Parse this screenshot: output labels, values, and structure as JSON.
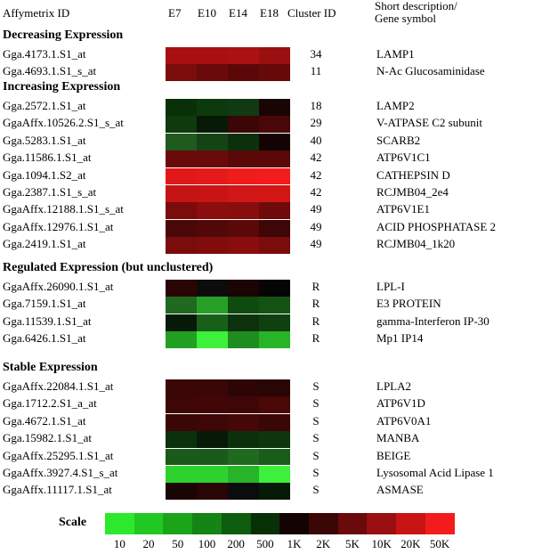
{
  "header": {
    "probe": "Affymetrix ID",
    "stages": [
      "E7",
      "E10",
      "E14",
      "E18"
    ],
    "cluster": "Cluster ID",
    "desc_line1": "Short description/",
    "desc_line2": "Gene symbol"
  },
  "chart_data": {
    "type": "heatmap",
    "columns": [
      "E7",
      "E10",
      "E14",
      "E18"
    ],
    "sections": [
      {
        "title": "Decreasing Expression",
        "rows": [
          {
            "probe": "Gga.4173.1.S1_at",
            "cluster": "34",
            "gene": "LAMP1",
            "colors": [
              "#a81010",
              "#a81010",
              "#aa1212",
              "#9a1010"
            ]
          },
          {
            "probe": "Gga.4693.1.S1_s_at",
            "cluster": "11",
            "gene": "N-Ac Glucosaminidase",
            "colors": [
              "#7a0c0c",
              "#6a0a0a",
              "#5c0808",
              "#660909"
            ]
          }
        ]
      },
      {
        "title": "Increasing Expression",
        "rows": [
          {
            "probe": "Gga.2572.1.S1_at",
            "cluster": "18",
            "gene": "LAMP2",
            "colors": [
              "#0a300a",
              "#0c3a0c",
              "#123a12",
              "#1a0505"
            ]
          },
          {
            "probe": "GgaAffx.10526.2.S1_s_at",
            "cluster": "29",
            "gene": "V-ATPASE C2 subunit",
            "colors": [
              "#0e3a0e",
              "#071a07",
              "#3a0606",
              "#4a0707"
            ]
          },
          {
            "probe": "Gga.5283.1.S1_at",
            "cluster": "40",
            "gene": "SCARB2",
            "colors": [
              "#1f5a1f",
              "#144414",
              "#0c300c",
              "#140303"
            ]
          },
          {
            "probe": "Gga.11586.1.S1_at",
            "cluster": "42",
            "gene": "ATP6V1C1",
            "colors": [
              "#6a0a0a",
              "#6a0a0a",
              "#5a0808",
              "#5a0808"
            ]
          },
          {
            "probe": "Gga.1094.1.S2_at",
            "cluster": "42",
            "gene": "CATHEPSIN D",
            "colors": [
              "#e01818",
              "#e61a1a",
              "#f01c1c",
              "#f21c1c"
            ]
          },
          {
            "probe": "Gga.2387.1.S1_s_at",
            "cluster": "42",
            "gene": "RCJMB04_2e4",
            "colors": [
              "#c41414",
              "#c81414",
              "#d01616",
              "#d21616"
            ]
          },
          {
            "probe": "GgaAffx.12188.1.S1_s_at",
            "cluster": "49",
            "gene": "ATP6V1E1",
            "colors": [
              "#7a0c0c",
              "#8c0d0d",
              "#8a0d0d",
              "#6e0a0a"
            ]
          },
          {
            "probe": "GgaAffx.12976.1.S1_at",
            "cluster": "49",
            "gene": "ACID PHOSPHATASE 2",
            "colors": [
              "#4a0707",
              "#520808",
              "#5a0808",
              "#3e0606"
            ]
          },
          {
            "probe": "Gga.2419.1.S1_at",
            "cluster": "49",
            "gene": "RCJMB04_1k20",
            "colors": [
              "#7a0c0c",
              "#800c0c",
              "#8a0d0d",
              "#7a0c0c"
            ]
          }
        ]
      },
      {
        "title": "Regulated Expression (but unclustered)",
        "rows": [
          {
            "probe": "GgaAffx.26090.1.S1_at",
            "cluster": "R",
            "gene": "LPL-I",
            "colors": [
              "#2a0505",
              "#0c0c0c",
              "#1a0404",
              "#050505"
            ]
          },
          {
            "probe": "Gga.7159.1.S1_at",
            "cluster": "R",
            "gene": "E3 PROTEIN",
            "colors": [
              "#1f6a1f",
              "#28a028",
              "#0f4a0f",
              "#145214"
            ]
          },
          {
            "probe": "Gga.11539.1.S1_at",
            "cluster": "R",
            "gene": "gamma-Interferon IP-30",
            "colors": [
              "#071a07",
              "#186018",
              "#0c320c",
              "#104010"
            ]
          },
          {
            "probe": "Gga.6426.1.S1_at",
            "cluster": "R",
            "gene": "Mp1 IP14",
            "colors": [
              "#22a022",
              "#3cf03c",
              "#1e8c1e",
              "#28b428"
            ]
          }
        ]
      },
      {
        "title": "Stable Expression",
        "rows": [
          {
            "probe": "GgaAffx.22084.1.S1_at",
            "cluster": "S",
            "gene": "LPLA2",
            "colors": [
              "#3a0606",
              "#3a0606",
              "#2e0505",
              "#2a0505"
            ]
          },
          {
            "probe": "Gga.1712.2.S1_a_at",
            "cluster": "S",
            "gene": "ATP6V1D",
            "colors": [
              "#3e0606",
              "#420606",
              "#3e0606",
              "#4a0707"
            ]
          },
          {
            "probe": "Gga.4672.1.S1_at",
            "cluster": "S",
            "gene": "ATP6V0A1",
            "colors": [
              "#3a0606",
              "#3e0606",
              "#460707",
              "#3a0606"
            ]
          },
          {
            "probe": "Gga.15982.1.S1_at",
            "cluster": "S",
            "gene": "MANBA",
            "colors": [
              "#0c300c",
              "#071a07",
              "#0c300c",
              "#0e360e"
            ]
          },
          {
            "probe": "GgaAffx.25295.1.S1_at",
            "cluster": "S",
            "gene": "BEIGE",
            "colors": [
              "#1a5a1a",
              "#1a5a1a",
              "#1f6a1f",
              "#1a5c1a"
            ]
          },
          {
            "probe": "GgaAffx.3927.4.S1_s_at",
            "cluster": "S",
            "gene": "Lysosomal Acid Lipase 1",
            "colors": [
              "#2ed22e",
              "#2ed22e",
              "#28b428",
              "#3cf03c"
            ]
          },
          {
            "probe": "GgaAffx.11117.1.S1_at",
            "cluster": "S",
            "gene": "ASMASE",
            "colors": [
              "#1a0404",
              "#2a0505",
              "#0c0c0c",
              "#071a07"
            ]
          }
        ]
      }
    ]
  },
  "scale": {
    "title": "Scale",
    "ticks": [
      "10",
      "20",
      "50",
      "100",
      "200",
      "500",
      "1K",
      "2K",
      "5K",
      "10K",
      "20K",
      "50K"
    ],
    "colors": [
      "#2ee82e",
      "#22c822",
      "#1aa41a",
      "#148414",
      "#0e5c0e",
      "#073007",
      "#140303",
      "#3a0606",
      "#6a0a0a",
      "#9a0f0f",
      "#c81414",
      "#f21c1c"
    ]
  }
}
